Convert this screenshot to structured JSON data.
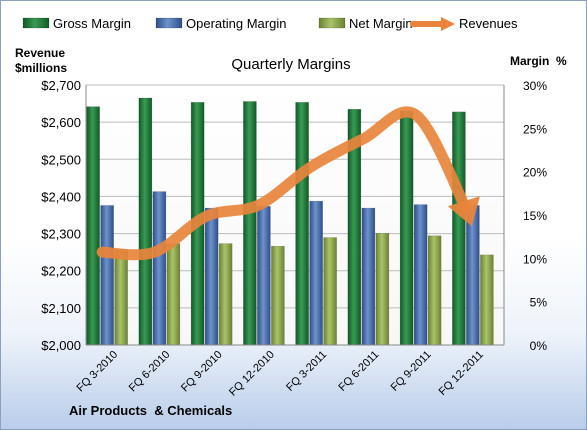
{
  "chart_data": {
    "type": "bar",
    "title": "Quarterly Margins",
    "left_axis_label": [
      "Revenue",
      "$millions"
    ],
    "right_axis_label": "Margin  %",
    "footer": "Air Products  & Chemicals",
    "categories": [
      "FQ 3-2010",
      "FQ 6-2010",
      "FQ 9-2010",
      "FQ 12-2010",
      "FQ 3-2011",
      "FQ 6-2011",
      "FQ 9-2011",
      "FQ 12-2011"
    ],
    "left_ylim": [
      2000,
      2700
    ],
    "left_ticks": [
      "$2,000",
      "$2,100",
      "$2,200",
      "$2,300",
      "$2,400",
      "$2,500",
      "$2,600",
      "$2,700"
    ],
    "right_ylim": [
      0,
      30
    ],
    "right_ticks": [
      "0%",
      "5%",
      "10%",
      "15%",
      "20%",
      "25%",
      "30%"
    ],
    "grid": "horizontal",
    "legend_position": "top",
    "series": [
      {
        "name": "Gross Margin",
        "axis": "right",
        "style": "bar",
        "color": "#1e7a3c",
        "values": [
          27.5,
          28.5,
          28.0,
          28.1,
          28.0,
          27.2,
          27.0,
          26.9
        ]
      },
      {
        "name": "Operating Margin",
        "axis": "right",
        "style": "bar",
        "color": "#4a6fb0",
        "values": [
          16.1,
          17.7,
          15.8,
          16.0,
          16.6,
          15.8,
          16.2,
          16.1
        ]
      },
      {
        "name": "Net Margin",
        "axis": "right",
        "style": "bar",
        "color": "#8aa14a",
        "values": [
          11.0,
          11.7,
          11.7,
          11.4,
          12.4,
          12.9,
          12.6,
          10.4
        ]
      },
      {
        "name": "Revenues",
        "axis": "left",
        "style": "arrow-line",
        "color": "#e8843c",
        "values": [
          2250,
          2250,
          2347,
          2377,
          2480,
          2555,
          2620,
          2422
        ]
      }
    ]
  }
}
